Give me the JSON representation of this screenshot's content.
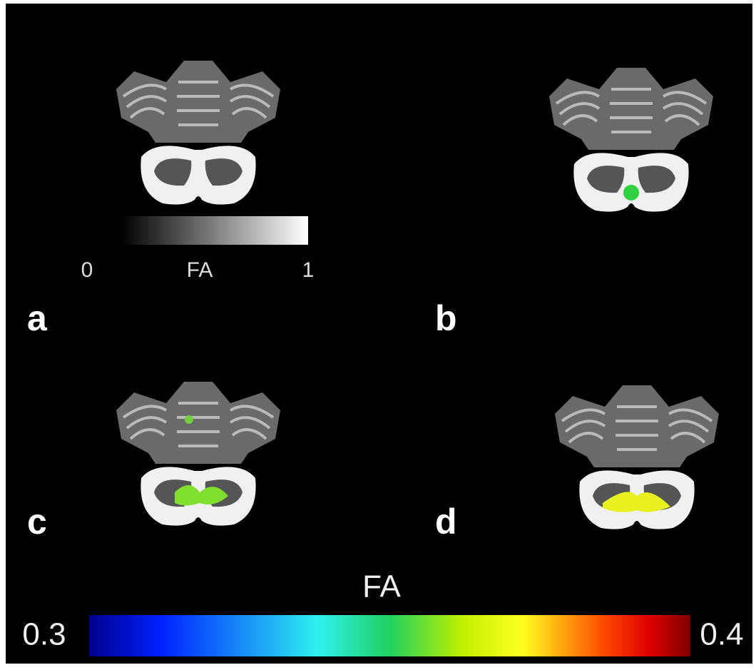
{
  "panels": [
    {
      "label": "a"
    },
    {
      "label": "b"
    },
    {
      "label": "c"
    },
    {
      "label": "d"
    }
  ],
  "gray_colorbar": {
    "min_label": "0",
    "title": "FA",
    "max_label": "1"
  },
  "color_colorbar": {
    "title": "FA",
    "min_label": "0.3",
    "max_label": "0.4"
  }
}
